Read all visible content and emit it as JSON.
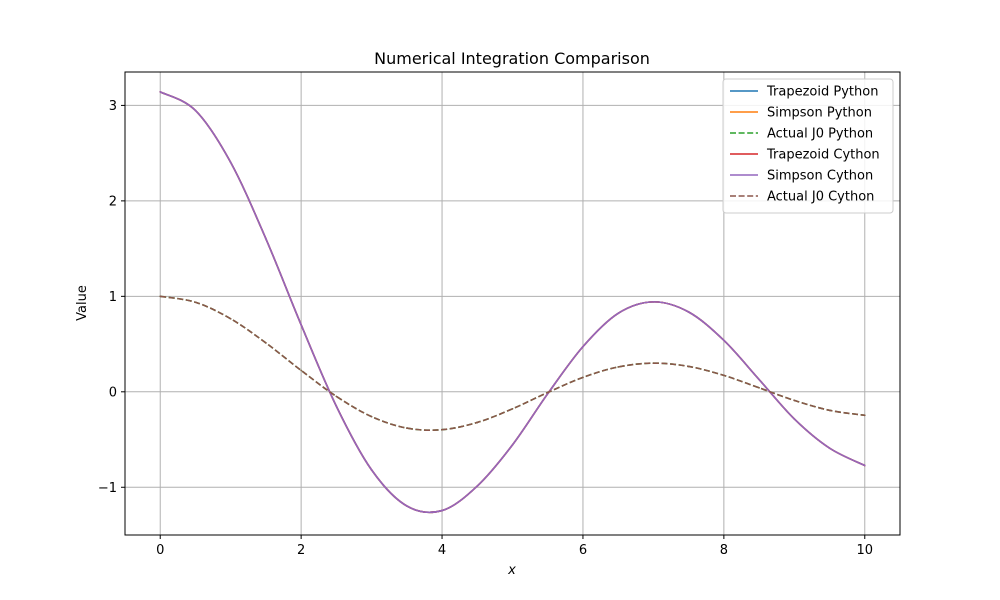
{
  "chart_data": {
    "type": "line",
    "title": "Numerical Integration Comparison",
    "xlabel": "x",
    "ylabel": "Value",
    "xlim": [
      -0.5,
      10.5
    ],
    "ylim": [
      -1.5,
      3.35
    ],
    "xticks": [
      0,
      2,
      4,
      6,
      8,
      10
    ],
    "yticks": [
      -1,
      0,
      1,
      2,
      3
    ],
    "xtick_labels": [
      "0",
      "2",
      "4",
      "6",
      "8",
      "10"
    ],
    "ytick_labels": [
      "−1",
      "0",
      "1",
      "2",
      "3"
    ],
    "grid": true,
    "legend_position": "top-right",
    "x": [
      0,
      0.5,
      1,
      1.5,
      2,
      2.5,
      3,
      3.5,
      4,
      4.5,
      5,
      5.5,
      6,
      6.5,
      7,
      7.5,
      8,
      8.5,
      9,
      9.5,
      10
    ],
    "series": [
      {
        "name": "Trapezoid Python",
        "color": "#1f77b4",
        "dash": "solid",
        "values": [
          3.142,
          2.947,
          2.403,
          1.603,
          0.702,
          -0.151,
          -0.818,
          -1.196,
          -1.244,
          -0.987,
          -0.556,
          -0.02,
          0.473,
          0.822,
          0.942,
          0.836,
          0.539,
          0.129,
          -0.284,
          -0.59,
          -0.772
        ]
      },
      {
        "name": "Simpson Python",
        "color": "#ff7f0e",
        "dash": "solid",
        "values": [
          3.142,
          2.947,
          2.403,
          1.603,
          0.702,
          -0.151,
          -0.818,
          -1.196,
          -1.244,
          -0.987,
          -0.556,
          -0.02,
          0.473,
          0.822,
          0.942,
          0.836,
          0.539,
          0.129,
          -0.284,
          -0.59,
          -0.772
        ]
      },
      {
        "name": "Actual J0 Python",
        "color": "#2ca02c",
        "dash": "dashed",
        "values": [
          1.0,
          0.938,
          0.765,
          0.512,
          0.224,
          -0.048,
          -0.26,
          -0.38,
          -0.397,
          -0.321,
          -0.178,
          -0.007,
          0.151,
          0.26,
          0.3,
          0.266,
          0.172,
          0.042,
          -0.09,
          -0.194,
          -0.246
        ]
      },
      {
        "name": "Trapezoid Cython",
        "color": "#d62728",
        "dash": "solid",
        "values": [
          3.142,
          2.947,
          2.403,
          1.603,
          0.702,
          -0.151,
          -0.818,
          -1.196,
          -1.244,
          -0.987,
          -0.556,
          -0.02,
          0.473,
          0.822,
          0.942,
          0.836,
          0.539,
          0.129,
          -0.284,
          -0.59,
          -0.772
        ]
      },
      {
        "name": "Simpson Cython",
        "color": "#9467bd",
        "dash": "solid",
        "values": [
          3.142,
          2.947,
          2.403,
          1.603,
          0.702,
          -0.151,
          -0.818,
          -1.196,
          -1.244,
          -0.987,
          -0.556,
          -0.02,
          0.473,
          0.822,
          0.942,
          0.836,
          0.539,
          0.129,
          -0.284,
          -0.59,
          -0.772
        ]
      },
      {
        "name": "Actual J0 Cython",
        "color": "#8c564b",
        "dash": "dashed",
        "values": [
          1.0,
          0.938,
          0.765,
          0.512,
          0.224,
          -0.048,
          -0.26,
          -0.38,
          -0.397,
          -0.321,
          -0.178,
          -0.007,
          0.151,
          0.26,
          0.3,
          0.266,
          0.172,
          0.042,
          -0.09,
          -0.194,
          -0.246
        ]
      }
    ]
  }
}
